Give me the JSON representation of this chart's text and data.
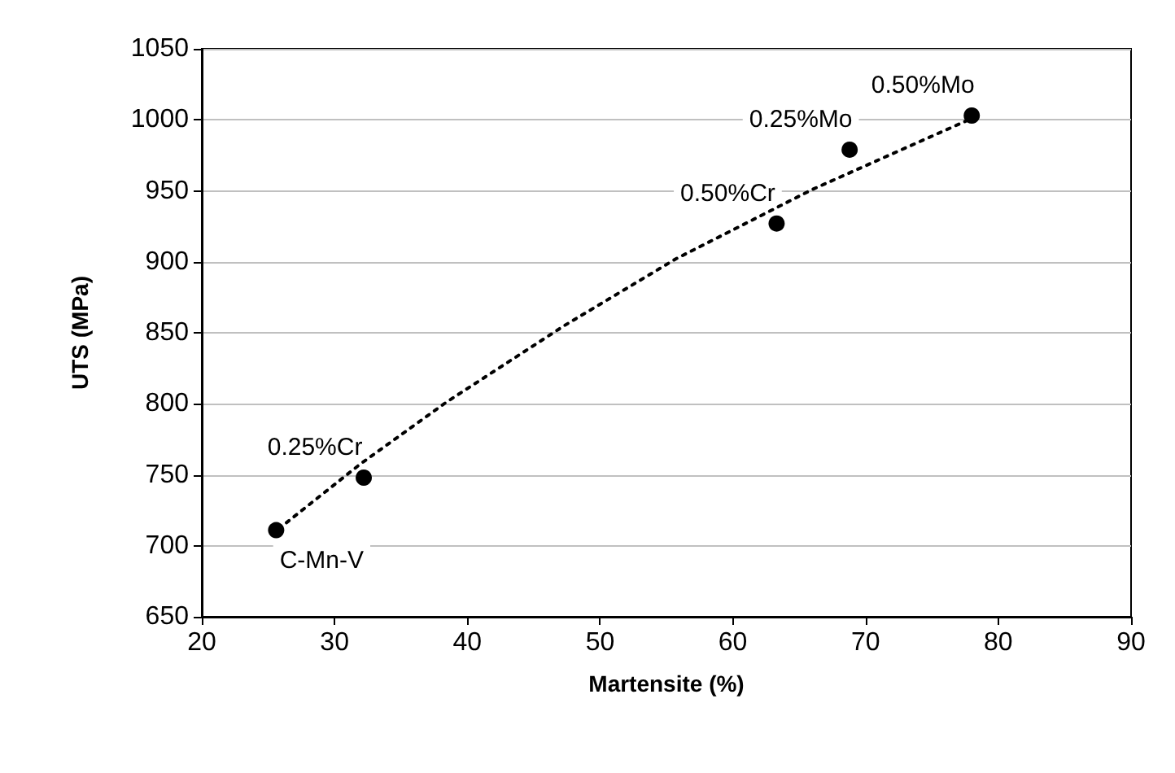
{
  "chart_data": {
    "type": "scatter",
    "xlabel": "Martensite (%)",
    "ylabel": "UTS (MPa)",
    "xlim": [
      20,
      90
    ],
    "xticks": [
      20,
      30,
      40,
      50,
      60,
      70,
      80,
      90
    ],
    "ylim": [
      650,
      1050
    ],
    "yticks": [
      650,
      700,
      750,
      800,
      850,
      900,
      950,
      1000,
      1050
    ],
    "grid": "y",
    "marker": "circle",
    "series": [
      {
        "color": "#000000",
        "x": [
          25.6,
          32.2,
          63.3,
          68.8,
          78.0
        ],
        "values": [
          711,
          748,
          927,
          979,
          1003
        ]
      },
      {
        "type": "line",
        "color": "#000000",
        "line_style": "dotted",
        "marker": "none",
        "x": [
          25.8,
          32.0,
          38.4,
          47.3,
          55.7,
          66.0,
          72.0,
          78.0
        ],
        "values": [
          712,
          758,
          801,
          855,
          902,
          951,
          976,
          1001
        ]
      }
    ],
    "annotations": [
      {
        "text": "C-Mn-V",
        "x": 25.6,
        "y": 711
      },
      {
        "text": "0.25%Cr",
        "x": 32.2,
        "y": 748
      },
      {
        "text": "0.50%Cr",
        "x": 63.3,
        "y": 927
      },
      {
        "text": "0.25%Mo",
        "x": 68.8,
        "y": 979
      },
      {
        "text": "0.50%Mo",
        "x": 78.0,
        "y": 1003
      }
    ]
  }
}
